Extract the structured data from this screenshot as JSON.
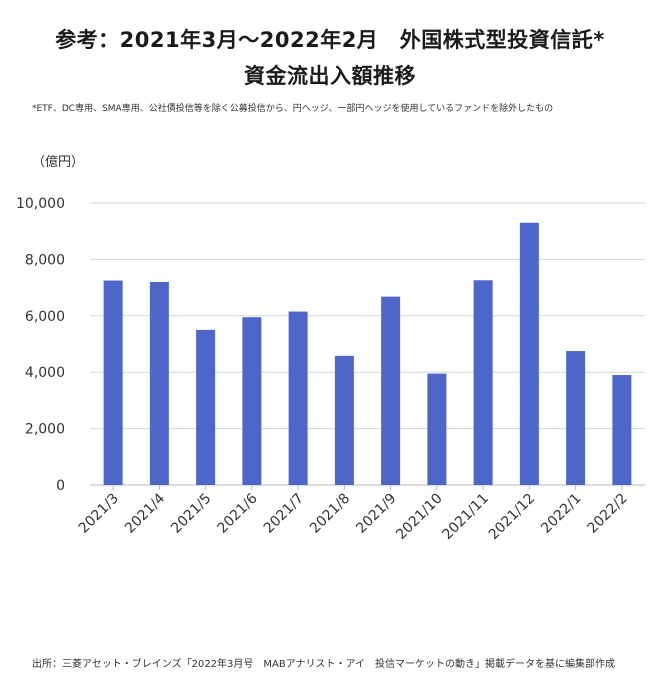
{
  "title_line1": "参考：2021年3月～2022年2月　外国株式型投資信託*",
  "title_line2": "資金流出入額推移",
  "footnote": "*ETF、DC専用、SMA専用、公社債投信等を除く公募投信から、円ヘッジ、一部円ヘッジを使用しているファンドを除外したもの",
  "unit_label": "（億円）",
  "source": "出所：三菱アセット・ブレインズ「2022年3月号　MABアナリスト・アイ　投信マーケットの動き」掲載データを基に編集部作成",
  "bar_color": "#4e66c7",
  "chart_data": {
    "type": "bar",
    "title": "資金流出入額推移",
    "xlabel": "",
    "ylabel": "（億円）",
    "ylim": [
      0,
      10000
    ],
    "yticks": [
      0,
      2000,
      4000,
      6000,
      8000,
      10000
    ],
    "ytick_labels": [
      "0",
      "2,000",
      "4,000",
      "6,000",
      "8,000",
      "10,000"
    ],
    "grid": true,
    "categories": [
      "2021/3",
      "2021/4",
      "2021/5",
      "2021/6",
      "2021/7",
      "2021/8",
      "2021/9",
      "2021/10",
      "2021/11",
      "2021/12",
      "2022/1",
      "2022/2"
    ],
    "values": [
      7250,
      7200,
      5500,
      5950,
      6150,
      4580,
      6680,
      3950,
      7260,
      9300,
      4750,
      3900
    ]
  }
}
